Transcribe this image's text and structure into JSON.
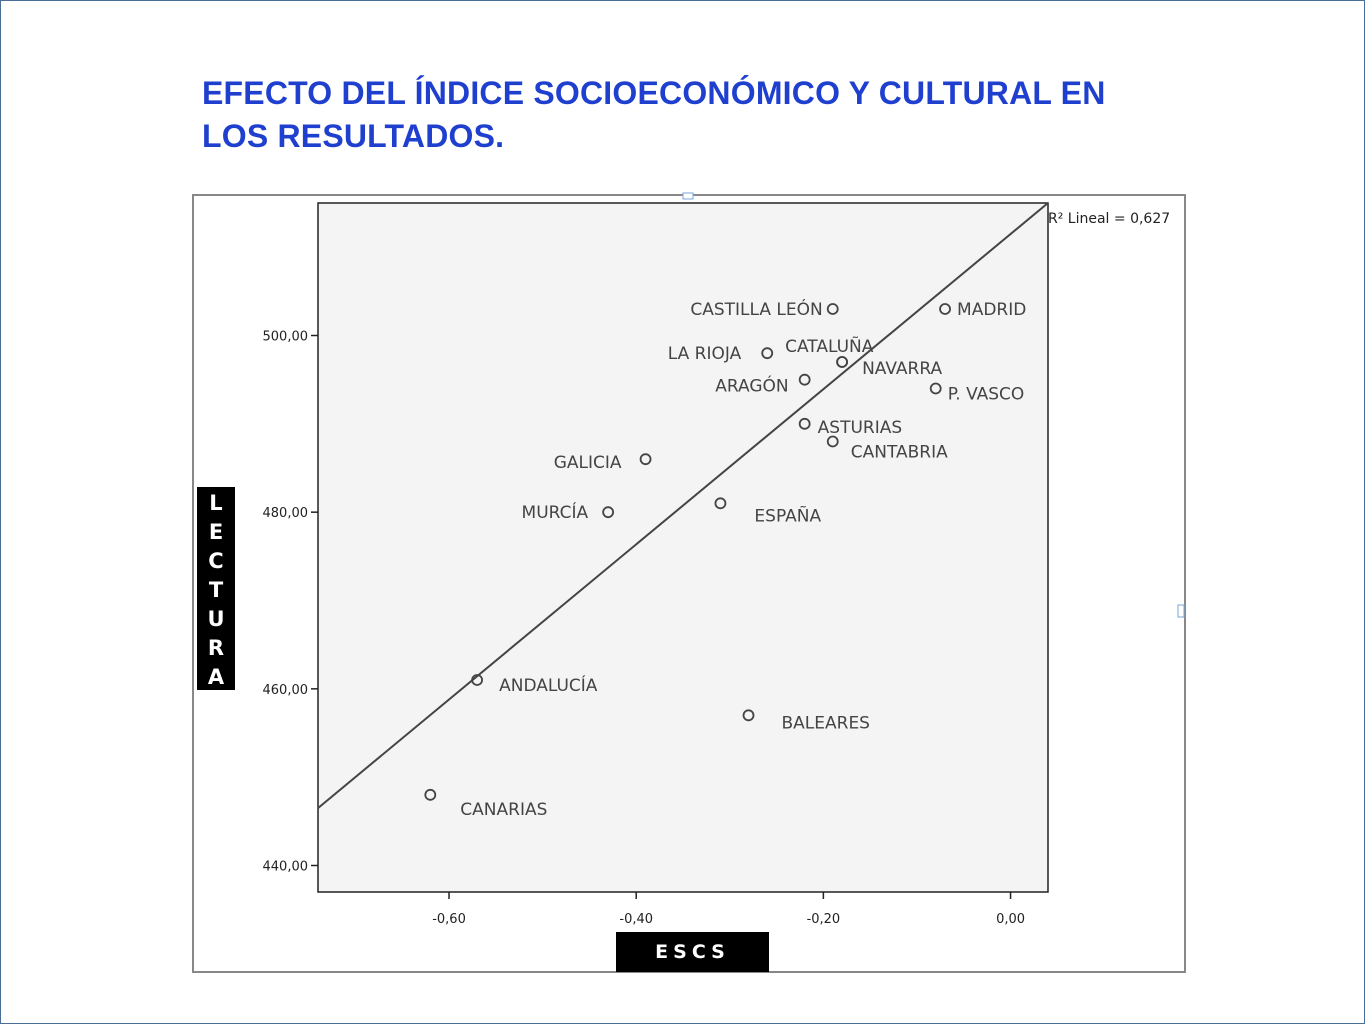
{
  "title": {
    "line1": "EFECTO DEL ÍNDICE SOCIOECONÓMICO Y CULTURAL  EN",
    "line2": "LOS RESULTADOS."
  },
  "chart_data": {
    "type": "scatter",
    "xlabel": "ESCS",
    "ylabel": "LECTURA",
    "xlim": [
      -0.74,
      0.04
    ],
    "ylim": [
      437,
      515
    ],
    "x_ticks": [
      "-0,60",
      "-0,40",
      "-0,20",
      "0,00"
    ],
    "x_tick_values": [
      -0.6,
      -0.4,
      -0.2,
      0.0
    ],
    "y_ticks": [
      "440,00",
      "460,00",
      "480,00",
      "500,00"
    ],
    "y_tick_values": [
      440,
      460,
      480,
      500
    ],
    "grid": false,
    "fit_line": {
      "label": "R² Lineal = 0,627",
      "r2": 0.627,
      "x": [
        -0.74,
        0.04
      ],
      "y": [
        446.5,
        515
      ]
    },
    "points": [
      {
        "label": "CASTILLA LEÓN",
        "x": -0.19,
        "y": 503
      },
      {
        "label": "MADRID",
        "x": -0.07,
        "y": 503
      },
      {
        "label": "LA RIOJA",
        "x": -0.26,
        "y": 498
      },
      {
        "label": "CATALUÑA",
        "x": -0.18,
        "y": 497
      },
      {
        "label": "NAVARRA",
        "x": -0.18,
        "y": 497
      },
      {
        "label": "ARAGÓN",
        "x": -0.22,
        "y": 495
      },
      {
        "label": "P. VASCO",
        "x": -0.08,
        "y": 494
      },
      {
        "label": "ASTURIAS",
        "x": -0.22,
        "y": 490
      },
      {
        "label": "CANTABRIA",
        "x": -0.19,
        "y": 488
      },
      {
        "label": "GALICIA",
        "x": -0.39,
        "y": 486
      },
      {
        "label": "MURCÍA",
        "x": -0.43,
        "y": 480
      },
      {
        "label": "ESPAÑA",
        "x": -0.31,
        "y": 481
      },
      {
        "label": "ANDALUCÍA",
        "x": -0.57,
        "y": 461
      },
      {
        "label": "BALEARES",
        "x": -0.28,
        "y": 457
      },
      {
        "label": "CANARIAS",
        "x": -0.62,
        "y": 448
      }
    ]
  }
}
